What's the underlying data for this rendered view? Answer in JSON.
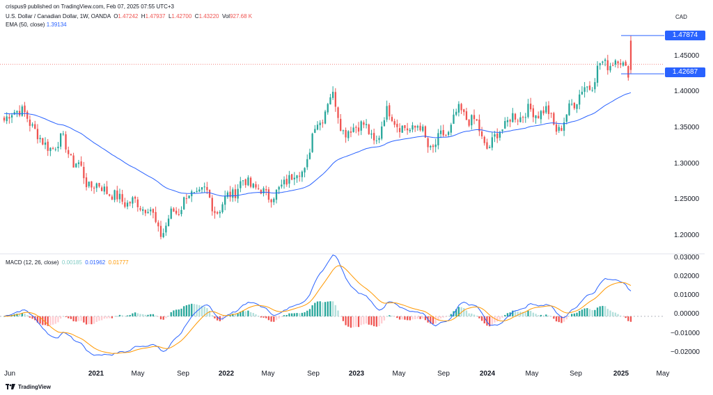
{
  "header": {
    "published": "crispus9 published on TradingView.com, Feb 07, 2025 07:55 UTC+3",
    "symbol": "U.S. Dollar / Canadian Dollar, 1W, OANDA",
    "o_label": "O",
    "o_value": "1.47242",
    "h_label": "H",
    "h_value": "1.47937",
    "l_label": "L",
    "l_value": "1.42700",
    "c_label": "C",
    "c_value": "1.43220",
    "vol_label": "Vol",
    "vol_value": "927.68 K",
    "ema_label": "EMA (50, close)",
    "ema_value": "1.39134",
    "currency": "CAD"
  },
  "macd_legend": {
    "label": "MACD (12, 26, close)",
    "hist_value": "0.00185",
    "macd_value": "0.01962",
    "signal_value": "0.01777"
  },
  "colors": {
    "up": "#26a69a",
    "down": "#ef5350",
    "ema": "#2962ff",
    "signal": "#ff9800",
    "hist_up": "#26a69a",
    "hist_up_fading": "#b2dfdb",
    "hist_down": "#ef5350",
    "hist_down_fading": "#ffcdd2",
    "box": "#2962ff"
  },
  "price_axis": {
    "ticks": [
      "1.20000",
      "1.25000",
      "1.30000",
      "1.35000",
      "1.40000",
      "1.45000"
    ],
    "high_box": "1.47874",
    "low_box": "1.42687"
  },
  "macd_axis": {
    "ticks": [
      "0.03000",
      "0.02000",
      "0.01000",
      "0.00000",
      "−0.01000",
      "−0.02000"
    ]
  },
  "time_axis": {
    "labels": [
      {
        "text": "Jun",
        "bold": false
      },
      {
        "text": "2021",
        "bold": true
      },
      {
        "text": "May",
        "bold": false
      },
      {
        "text": "Sep",
        "bold": false
      },
      {
        "text": "2022",
        "bold": true
      },
      {
        "text": "May",
        "bold": false
      },
      {
        "text": "Sep",
        "bold": false
      },
      {
        "text": "2023",
        "bold": true
      },
      {
        "text": "May",
        "bold": false
      },
      {
        "text": "Sep",
        "bold": false
      },
      {
        "text": "2024",
        "bold": true
      },
      {
        "text": "May",
        "bold": false
      },
      {
        "text": "Sep",
        "bold": false
      },
      {
        "text": "2025",
        "bold": true
      },
      {
        "text": "May",
        "bold": false
      }
    ]
  },
  "footer": {
    "logo_text": "TradingView"
  },
  "chart_data": {
    "type": "candlestick",
    "price_range": [
      1.18,
      1.49
    ],
    "macd_range": [
      -0.025,
      0.031
    ],
    "anchors": [
      [
        "2020-06",
        1.363
      ],
      [
        "2020-06",
        1.38
      ],
      [
        "2020-07",
        1.355
      ],
      [
        "2020-08",
        1.325
      ],
      [
        "2020-10",
        1.335
      ],
      [
        "2020-11",
        1.305
      ],
      [
        "2020-12",
        1.275
      ],
      [
        "2021-01",
        1.27
      ],
      [
        "2021-02",
        1.255
      ],
      [
        "2021-03",
        1.25
      ],
      [
        "2021-04",
        1.245
      ],
      [
        "2021-05",
        1.21
      ],
      [
        "2021-06",
        1.238
      ],
      [
        "2021-08",
        1.26
      ],
      [
        "2021-09",
        1.265
      ],
      [
        "2021-10",
        1.24
      ],
      [
        "2021-11",
        1.265
      ],
      [
        "2021-12",
        1.28
      ],
      [
        "2022-01",
        1.265
      ],
      [
        "2022-03",
        1.26
      ],
      [
        "2022-05",
        1.285
      ],
      [
        "2022-07",
        1.295
      ],
      [
        "2022-09",
        1.36
      ],
      [
        "2022-10",
        1.395
      ],
      [
        "2022-11",
        1.345
      ],
      [
        "2022-12",
        1.36
      ],
      [
        "2023-02",
        1.335
      ],
      [
        "2023-03",
        1.375
      ],
      [
        "2023-05",
        1.35
      ],
      [
        "2023-06",
        1.355
      ],
      [
        "2023-07",
        1.325
      ],
      [
        "2023-08",
        1.345
      ],
      [
        "2023-10",
        1.375
      ],
      [
        "2023-11",
        1.36
      ],
      [
        "2024-01",
        1.325
      ],
      [
        "2024-03",
        1.355
      ],
      [
        "2024-05",
        1.37
      ],
      [
        "2024-06",
        1.375
      ],
      [
        "2024-08",
        1.375
      ],
      [
        "2024-09",
        1.35
      ],
      [
        "2024-10",
        1.39
      ],
      [
        "2024-11",
        1.41
      ],
      [
        "2024-12",
        1.44
      ],
      [
        "2025-01",
        1.445
      ],
      [
        "2025-02",
        1.432
      ]
    ],
    "last_candle": {
      "open": 1.47242,
      "high": 1.47937,
      "low": 1.427,
      "close": 1.4322
    },
    "ema_50": 1.39134,
    "macd": {
      "histogram": 0.00185,
      "macd": 0.01962,
      "signal": 0.01777
    },
    "reference_line": 1.44,
    "ylabel_right": "CAD"
  }
}
